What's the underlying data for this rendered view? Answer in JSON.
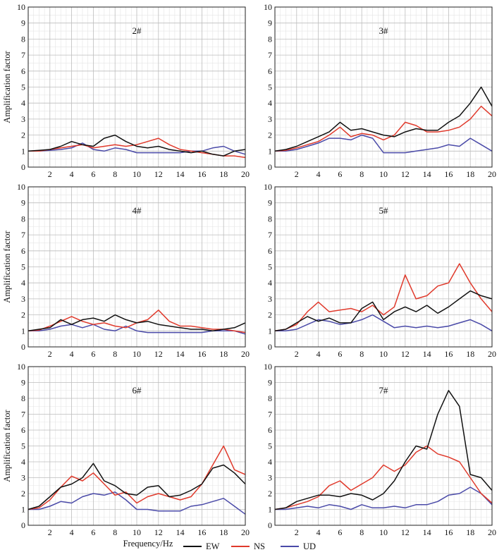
{
  "figure": {
    "xlabel": "Frequency/Hz",
    "ylabel": "Amplification factor"
  },
  "legend": [
    {
      "label": "EW",
      "color": "#111111"
    },
    {
      "label": "NS",
      "color": "#e03a2c"
    },
    {
      "label": "UD",
      "color": "#4a4aa8"
    }
  ],
  "chart_data": [
    {
      "type": "line",
      "title": "2#",
      "xlim": [
        0,
        20
      ],
      "ylim": [
        0,
        10
      ],
      "xticks": [
        2,
        4,
        6,
        8,
        10,
        12,
        14,
        16,
        18,
        20
      ],
      "yticks": [
        0,
        1,
        2,
        3,
        4,
        5,
        6,
        7,
        8,
        9,
        10
      ],
      "x": [
        0,
        1,
        2,
        3,
        4,
        5,
        6,
        7,
        8,
        9,
        10,
        11,
        12,
        13,
        14,
        15,
        16,
        17,
        18,
        19,
        20
      ],
      "series": [
        {
          "name": "EW",
          "values": [
            1.0,
            1.05,
            1.1,
            1.3,
            1.6,
            1.4,
            1.3,
            1.8,
            2.0,
            1.6,
            1.3,
            1.2,
            1.3,
            1.1,
            1.0,
            0.9,
            1.0,
            0.8,
            0.7,
            1.0,
            1.1
          ]
        },
        {
          "name": "NS",
          "values": [
            1.0,
            1.0,
            1.1,
            1.2,
            1.3,
            1.4,
            1.2,
            1.3,
            1.4,
            1.3,
            1.4,
            1.6,
            1.8,
            1.4,
            1.1,
            1.0,
            0.9,
            0.8,
            0.7,
            0.7,
            0.6
          ]
        },
        {
          "name": "UD",
          "values": [
            1.0,
            1.0,
            1.05,
            1.1,
            1.2,
            1.5,
            1.1,
            1.0,
            1.2,
            1.1,
            0.9,
            0.9,
            0.9,
            0.9,
            0.9,
            1.0,
            1.0,
            1.2,
            1.3,
            1.0,
            0.8
          ]
        }
      ]
    },
    {
      "type": "line",
      "title": "3#",
      "xlim": [
        0,
        20
      ],
      "ylim": [
        0,
        10
      ],
      "xticks": [
        2,
        4,
        6,
        8,
        10,
        12,
        14,
        16,
        18,
        20
      ],
      "yticks": [
        0,
        1,
        2,
        3,
        4,
        5,
        6,
        7,
        8,
        9,
        10
      ],
      "x": [
        0,
        1,
        2,
        3,
        4,
        5,
        6,
        7,
        8,
        9,
        10,
        11,
        12,
        13,
        14,
        15,
        16,
        17,
        18,
        19,
        20
      ],
      "series": [
        {
          "name": "EW",
          "values": [
            1.0,
            1.1,
            1.3,
            1.6,
            1.9,
            2.2,
            2.8,
            2.3,
            2.4,
            2.2,
            2.0,
            1.9,
            2.2,
            2.4,
            2.3,
            2.3,
            2.8,
            3.2,
            4.0,
            5.0,
            3.8
          ]
        },
        {
          "name": "NS",
          "values": [
            1.0,
            1.05,
            1.2,
            1.4,
            1.6,
            2.0,
            2.5,
            1.9,
            2.1,
            2.0,
            1.7,
            2.0,
            2.8,
            2.6,
            2.2,
            2.2,
            2.3,
            2.5,
            3.0,
            3.8,
            3.2
          ]
        },
        {
          "name": "UD",
          "values": [
            1.0,
            1.0,
            1.1,
            1.3,
            1.5,
            1.8,
            1.8,
            1.7,
            2.0,
            1.8,
            0.9,
            0.9,
            0.9,
            1.0,
            1.1,
            1.2,
            1.4,
            1.3,
            1.8,
            1.4,
            1.0
          ]
        }
      ]
    },
    {
      "type": "line",
      "title": "4#",
      "xlim": [
        0,
        20
      ],
      "ylim": [
        0,
        10
      ],
      "xticks": [
        2,
        4,
        6,
        8,
        10,
        12,
        14,
        16,
        18,
        20
      ],
      "yticks": [
        0,
        1,
        2,
        3,
        4,
        5,
        6,
        7,
        8,
        9,
        10
      ],
      "x": [
        0,
        1,
        2,
        3,
        4,
        5,
        6,
        7,
        8,
        9,
        10,
        11,
        12,
        13,
        14,
        15,
        16,
        17,
        18,
        19,
        20
      ],
      "series": [
        {
          "name": "EW",
          "values": [
            1.0,
            1.1,
            1.2,
            1.7,
            1.4,
            1.7,
            1.8,
            1.6,
            2.0,
            1.7,
            1.5,
            1.6,
            1.4,
            1.3,
            1.2,
            1.1,
            1.1,
            1.0,
            1.1,
            1.2,
            1.5
          ]
        },
        {
          "name": "NS",
          "values": [
            1.0,
            1.05,
            1.3,
            1.6,
            1.9,
            1.6,
            1.4,
            1.5,
            1.3,
            1.2,
            1.5,
            1.7,
            2.3,
            1.6,
            1.3,
            1.3,
            1.2,
            1.1,
            1.1,
            1.0,
            0.9
          ]
        },
        {
          "name": "UD",
          "values": [
            1.0,
            1.0,
            1.1,
            1.3,
            1.4,
            1.2,
            1.4,
            1.1,
            1.0,
            1.3,
            1.0,
            0.9,
            0.9,
            0.9,
            0.9,
            0.9,
            0.9,
            1.0,
            1.0,
            1.0,
            0.8
          ]
        }
      ]
    },
    {
      "type": "line",
      "title": "5#",
      "xlim": [
        0,
        20
      ],
      "ylim": [
        0,
        10
      ],
      "xticks": [
        2,
        4,
        6,
        8,
        10,
        12,
        14,
        16,
        18,
        20
      ],
      "yticks": [
        0,
        1,
        2,
        3,
        4,
        5,
        6,
        7,
        8,
        9,
        10
      ],
      "x": [
        0,
        1,
        2,
        3,
        4,
        5,
        6,
        7,
        8,
        9,
        10,
        11,
        12,
        13,
        14,
        15,
        16,
        17,
        18,
        19,
        20
      ],
      "series": [
        {
          "name": "EW",
          "values": [
            1.0,
            1.1,
            1.5,
            1.9,
            1.6,
            1.8,
            1.5,
            1.5,
            2.4,
            2.8,
            1.7,
            2.2,
            2.5,
            2.2,
            2.6,
            2.1,
            2.5,
            3.0,
            3.5,
            3.2,
            3.0
          ]
        },
        {
          "name": "NS",
          "values": [
            1.0,
            1.1,
            1.4,
            2.2,
            2.8,
            2.2,
            2.3,
            2.4,
            2.2,
            2.6,
            2.0,
            2.5,
            4.5,
            3.0,
            3.2,
            3.8,
            4.0,
            5.2,
            4.0,
            3.0,
            2.2
          ]
        },
        {
          "name": "UD",
          "values": [
            1.0,
            1.0,
            1.1,
            1.4,
            1.7,
            1.6,
            1.4,
            1.5,
            1.7,
            2.0,
            1.6,
            1.2,
            1.3,
            1.2,
            1.3,
            1.2,
            1.3,
            1.5,
            1.7,
            1.4,
            1.0
          ]
        }
      ]
    },
    {
      "type": "line",
      "title": "6#",
      "xlim": [
        0,
        20
      ],
      "ylim": [
        0,
        10
      ],
      "xticks": [
        2,
        4,
        6,
        8,
        10,
        12,
        14,
        16,
        18,
        20
      ],
      "yticks": [
        0,
        1,
        2,
        3,
        4,
        5,
        6,
        7,
        8,
        9,
        10
      ],
      "x": [
        0,
        1,
        2,
        3,
        4,
        5,
        6,
        7,
        8,
        9,
        10,
        11,
        12,
        13,
        14,
        15,
        16,
        17,
        18,
        19,
        20
      ],
      "series": [
        {
          "name": "EW",
          "values": [
            1.0,
            1.2,
            1.8,
            2.4,
            2.6,
            3.0,
            3.9,
            2.8,
            2.5,
            2.0,
            1.9,
            2.4,
            2.5,
            1.8,
            1.9,
            2.2,
            2.6,
            3.6,
            3.8,
            3.3,
            2.6
          ]
        },
        {
          "name": "NS",
          "values": [
            1.0,
            1.1,
            1.6,
            2.4,
            3.1,
            2.8,
            3.3,
            2.6,
            1.9,
            2.1,
            1.4,
            1.8,
            2.0,
            1.8,
            1.6,
            1.8,
            2.6,
            3.8,
            5.0,
            3.5,
            3.2
          ]
        },
        {
          "name": "UD",
          "values": [
            1.0,
            1.0,
            1.2,
            1.5,
            1.4,
            1.8,
            2.0,
            1.9,
            2.1,
            1.6,
            1.0,
            1.0,
            0.9,
            0.9,
            0.9,
            1.2,
            1.3,
            1.5,
            1.7,
            1.2,
            0.7
          ]
        }
      ]
    },
    {
      "type": "line",
      "title": "7#",
      "xlim": [
        0,
        20
      ],
      "ylim": [
        0,
        10
      ],
      "xticks": [
        2,
        4,
        6,
        8,
        10,
        12,
        14,
        16,
        18,
        20
      ],
      "yticks": [
        0,
        1,
        2,
        3,
        4,
        5,
        6,
        7,
        8,
        9,
        10
      ],
      "x": [
        0,
        1,
        2,
        3,
        4,
        5,
        6,
        7,
        8,
        9,
        10,
        11,
        12,
        13,
        14,
        15,
        16,
        17,
        18,
        19,
        20
      ],
      "series": [
        {
          "name": "EW",
          "values": [
            1.0,
            1.1,
            1.5,
            1.7,
            1.9,
            1.9,
            1.8,
            2.0,
            1.9,
            1.6,
            2.0,
            2.8,
            4.0,
            5.0,
            4.8,
            7.0,
            8.5,
            7.5,
            3.2,
            3.0,
            2.2
          ]
        },
        {
          "name": "NS",
          "values": [
            1.0,
            1.1,
            1.3,
            1.5,
            1.8,
            2.5,
            2.8,
            2.2,
            2.6,
            3.0,
            3.8,
            3.4,
            3.8,
            4.6,
            5.0,
            4.5,
            4.3,
            4.0,
            3.0,
            2.0,
            1.4
          ]
        },
        {
          "name": "UD",
          "values": [
            1.0,
            1.0,
            1.1,
            1.2,
            1.1,
            1.3,
            1.2,
            1.0,
            1.3,
            1.1,
            1.1,
            1.2,
            1.1,
            1.3,
            1.3,
            1.5,
            1.9,
            2.0,
            2.4,
            2.0,
            1.3
          ]
        }
      ]
    }
  ]
}
